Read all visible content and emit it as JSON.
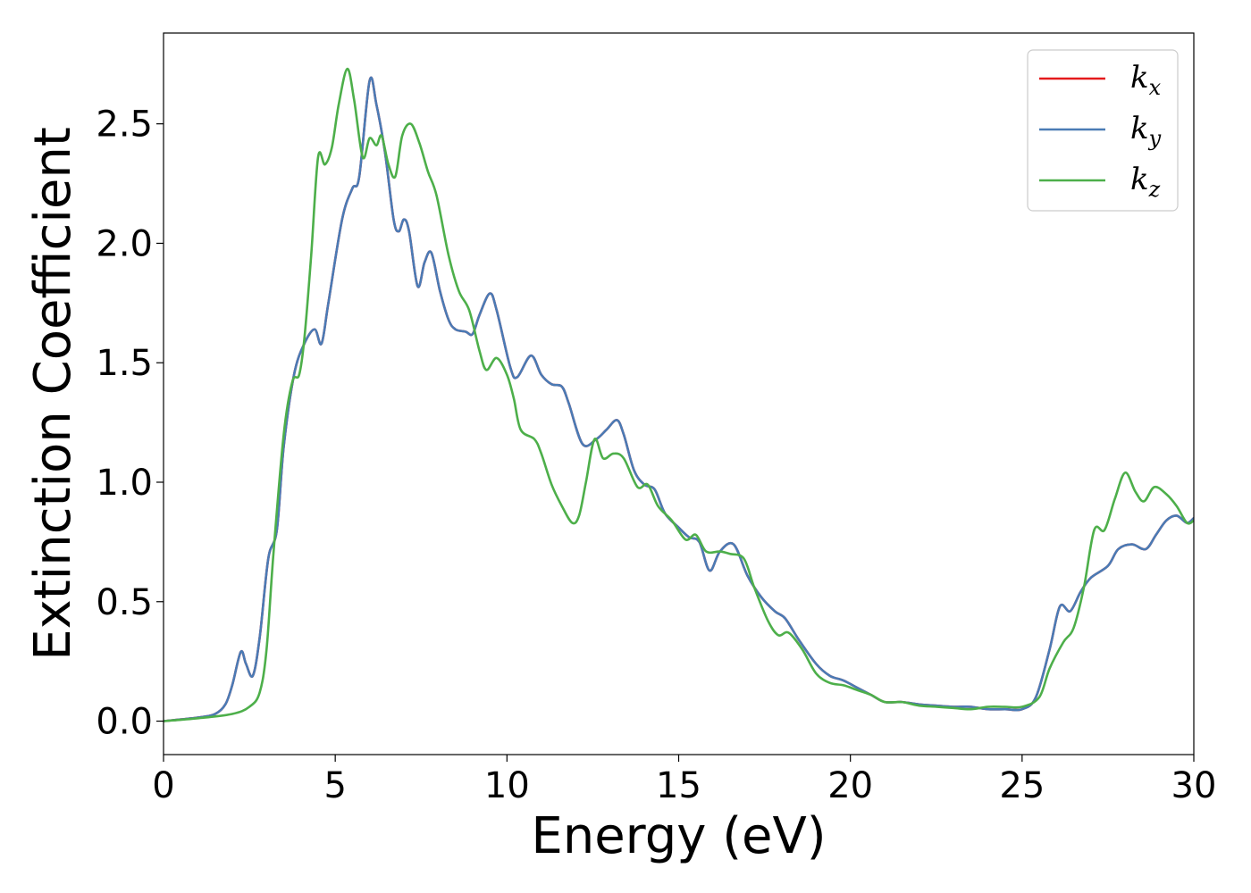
{
  "chart_data": {
    "type": "line",
    "xlabel": "Energy (eV)",
    "ylabel": "Extinction Coefficient",
    "xlim": [
      0,
      30
    ],
    "ylim": [
      -0.14,
      2.88
    ],
    "xticks": [
      0,
      5,
      10,
      15,
      20,
      25,
      30
    ],
    "yticks": [
      0.0,
      0.5,
      1.0,
      1.5,
      2.0,
      2.5
    ],
    "xtick_labels": [
      "0",
      "5",
      "10",
      "15",
      "20",
      "25",
      "30"
    ],
    "ytick_labels": [
      "0.0",
      "0.5",
      "1.0",
      "1.5",
      "2.0",
      "2.5"
    ],
    "grid": false,
    "legend_position": "top-right",
    "series": [
      {
        "name": "k_x",
        "label_base": "k",
        "label_sub": "x",
        "color": "#e41a1c",
        "points": [
          [
            0,
            0.0
          ],
          [
            1.0,
            0.015
          ],
          [
            1.5,
            0.03
          ],
          [
            1.8,
            0.07
          ],
          [
            2.0,
            0.15
          ],
          [
            2.25,
            0.29
          ],
          [
            2.4,
            0.24
          ],
          [
            2.6,
            0.19
          ],
          [
            2.8,
            0.35
          ],
          [
            3.05,
            0.68
          ],
          [
            3.3,
            0.8
          ],
          [
            3.5,
            1.15
          ],
          [
            3.8,
            1.45
          ],
          [
            4.1,
            1.58
          ],
          [
            4.4,
            1.64
          ],
          [
            4.6,
            1.58
          ],
          [
            4.8,
            1.75
          ],
          [
            5.2,
            2.1
          ],
          [
            5.5,
            2.23
          ],
          [
            5.7,
            2.28
          ],
          [
            6.0,
            2.68
          ],
          [
            6.2,
            2.58
          ],
          [
            6.45,
            2.38
          ],
          [
            6.7,
            2.1
          ],
          [
            6.85,
            2.05
          ],
          [
            7.0,
            2.1
          ],
          [
            7.15,
            2.05
          ],
          [
            7.4,
            1.82
          ],
          [
            7.6,
            1.92
          ],
          [
            7.8,
            1.96
          ],
          [
            8.05,
            1.8
          ],
          [
            8.3,
            1.68
          ],
          [
            8.5,
            1.64
          ],
          [
            8.8,
            1.63
          ],
          [
            9.0,
            1.62
          ],
          [
            9.2,
            1.7
          ],
          [
            9.5,
            1.79
          ],
          [
            9.7,
            1.72
          ],
          [
            10.1,
            1.48
          ],
          [
            10.3,
            1.44
          ],
          [
            10.7,
            1.53
          ],
          [
            11.0,
            1.45
          ],
          [
            11.3,
            1.41
          ],
          [
            11.6,
            1.4
          ],
          [
            11.8,
            1.33
          ],
          [
            12.2,
            1.16
          ],
          [
            12.6,
            1.18
          ],
          [
            12.9,
            1.22
          ],
          [
            13.2,
            1.26
          ],
          [
            13.4,
            1.2
          ],
          [
            13.7,
            1.05
          ],
          [
            14.0,
            0.99
          ],
          [
            14.3,
            0.97
          ],
          [
            14.6,
            0.87
          ],
          [
            15.0,
            0.81
          ],
          [
            15.3,
            0.77
          ],
          [
            15.6,
            0.75
          ],
          [
            15.9,
            0.63
          ],
          [
            16.2,
            0.71
          ],
          [
            16.6,
            0.74
          ],
          [
            17.0,
            0.61
          ],
          [
            17.4,
            0.52
          ],
          [
            17.8,
            0.46
          ],
          [
            18.1,
            0.43
          ],
          [
            18.5,
            0.34
          ],
          [
            19.0,
            0.24
          ],
          [
            19.4,
            0.19
          ],
          [
            19.8,
            0.17
          ],
          [
            20.2,
            0.14
          ],
          [
            20.6,
            0.11
          ],
          [
            21.0,
            0.08
          ],
          [
            21.5,
            0.08
          ],
          [
            22.0,
            0.07
          ],
          [
            22.5,
            0.065
          ],
          [
            23.0,
            0.06
          ],
          [
            23.5,
            0.06
          ],
          [
            24.0,
            0.05
          ],
          [
            24.5,
            0.05
          ],
          [
            25.0,
            0.05
          ],
          [
            25.4,
            0.1
          ],
          [
            25.8,
            0.3
          ],
          [
            26.1,
            0.48
          ],
          [
            26.4,
            0.46
          ],
          [
            26.7,
            0.54
          ],
          [
            27.0,
            0.6
          ],
          [
            27.5,
            0.65
          ],
          [
            27.8,
            0.72
          ],
          [
            28.2,
            0.74
          ],
          [
            28.6,
            0.72
          ],
          [
            28.9,
            0.78
          ],
          [
            29.2,
            0.84
          ],
          [
            29.5,
            0.86
          ],
          [
            29.8,
            0.83
          ],
          [
            30.0,
            0.85
          ]
        ]
      },
      {
        "name": "k_y",
        "label_base": "k",
        "label_sub": "y",
        "color": "#4a7bb5",
        "points": [
          [
            0,
            0.0
          ],
          [
            1.0,
            0.015
          ],
          [
            1.5,
            0.03
          ],
          [
            1.8,
            0.07
          ],
          [
            2.0,
            0.15
          ],
          [
            2.25,
            0.29
          ],
          [
            2.4,
            0.24
          ],
          [
            2.6,
            0.19
          ],
          [
            2.8,
            0.35
          ],
          [
            3.05,
            0.68
          ],
          [
            3.3,
            0.8
          ],
          [
            3.5,
            1.15
          ],
          [
            3.8,
            1.45
          ],
          [
            4.1,
            1.58
          ],
          [
            4.4,
            1.64
          ],
          [
            4.6,
            1.58
          ],
          [
            4.8,
            1.75
          ],
          [
            5.2,
            2.1
          ],
          [
            5.5,
            2.23
          ],
          [
            5.7,
            2.28
          ],
          [
            6.0,
            2.68
          ],
          [
            6.2,
            2.58
          ],
          [
            6.45,
            2.38
          ],
          [
            6.7,
            2.1
          ],
          [
            6.85,
            2.05
          ],
          [
            7.0,
            2.1
          ],
          [
            7.15,
            2.05
          ],
          [
            7.4,
            1.82
          ],
          [
            7.6,
            1.92
          ],
          [
            7.8,
            1.96
          ],
          [
            8.05,
            1.8
          ],
          [
            8.3,
            1.68
          ],
          [
            8.5,
            1.64
          ],
          [
            8.8,
            1.63
          ],
          [
            9.0,
            1.62
          ],
          [
            9.2,
            1.7
          ],
          [
            9.5,
            1.79
          ],
          [
            9.7,
            1.72
          ],
          [
            10.1,
            1.48
          ],
          [
            10.3,
            1.44
          ],
          [
            10.7,
            1.53
          ],
          [
            11.0,
            1.45
          ],
          [
            11.3,
            1.41
          ],
          [
            11.6,
            1.4
          ],
          [
            11.8,
            1.33
          ],
          [
            12.2,
            1.16
          ],
          [
            12.6,
            1.18
          ],
          [
            12.9,
            1.22
          ],
          [
            13.2,
            1.26
          ],
          [
            13.4,
            1.2
          ],
          [
            13.7,
            1.05
          ],
          [
            14.0,
            0.99
          ],
          [
            14.3,
            0.97
          ],
          [
            14.6,
            0.87
          ],
          [
            15.0,
            0.81
          ],
          [
            15.3,
            0.77
          ],
          [
            15.6,
            0.75
          ],
          [
            15.9,
            0.63
          ],
          [
            16.2,
            0.71
          ],
          [
            16.6,
            0.74
          ],
          [
            17.0,
            0.61
          ],
          [
            17.4,
            0.52
          ],
          [
            17.8,
            0.46
          ],
          [
            18.1,
            0.43
          ],
          [
            18.5,
            0.34
          ],
          [
            19.0,
            0.24
          ],
          [
            19.4,
            0.19
          ],
          [
            19.8,
            0.17
          ],
          [
            20.2,
            0.14
          ],
          [
            20.6,
            0.11
          ],
          [
            21.0,
            0.08
          ],
          [
            21.5,
            0.08
          ],
          [
            22.0,
            0.07
          ],
          [
            22.5,
            0.065
          ],
          [
            23.0,
            0.06
          ],
          [
            23.5,
            0.06
          ],
          [
            24.0,
            0.05
          ],
          [
            24.5,
            0.05
          ],
          [
            25.0,
            0.05
          ],
          [
            25.4,
            0.1
          ],
          [
            25.8,
            0.3
          ],
          [
            26.1,
            0.48
          ],
          [
            26.4,
            0.46
          ],
          [
            26.7,
            0.54
          ],
          [
            27.0,
            0.6
          ],
          [
            27.5,
            0.65
          ],
          [
            27.8,
            0.72
          ],
          [
            28.2,
            0.74
          ],
          [
            28.6,
            0.72
          ],
          [
            28.9,
            0.78
          ],
          [
            29.2,
            0.84
          ],
          [
            29.5,
            0.86
          ],
          [
            29.8,
            0.83
          ],
          [
            30.0,
            0.85
          ]
        ]
      },
      {
        "name": "k_z",
        "label_base": "k",
        "label_sub": "z",
        "color": "#4daf4a",
        "points": [
          [
            0,
            0.0
          ],
          [
            1.0,
            0.012
          ],
          [
            2.0,
            0.03
          ],
          [
            2.5,
            0.06
          ],
          [
            2.8,
            0.12
          ],
          [
            3.0,
            0.3
          ],
          [
            3.2,
            0.7
          ],
          [
            3.5,
            1.2
          ],
          [
            3.75,
            1.42
          ],
          [
            3.95,
            1.45
          ],
          [
            4.1,
            1.6
          ],
          [
            4.3,
            1.95
          ],
          [
            4.5,
            2.36
          ],
          [
            4.7,
            2.33
          ],
          [
            4.9,
            2.4
          ],
          [
            5.1,
            2.58
          ],
          [
            5.35,
            2.73
          ],
          [
            5.55,
            2.6
          ],
          [
            5.8,
            2.36
          ],
          [
            6.0,
            2.44
          ],
          [
            6.2,
            2.41
          ],
          [
            6.35,
            2.45
          ],
          [
            6.55,
            2.33
          ],
          [
            6.75,
            2.28
          ],
          [
            6.95,
            2.45
          ],
          [
            7.2,
            2.5
          ],
          [
            7.45,
            2.42
          ],
          [
            7.7,
            2.3
          ],
          [
            7.95,
            2.2
          ],
          [
            8.3,
            1.95
          ],
          [
            8.6,
            1.8
          ],
          [
            8.9,
            1.72
          ],
          [
            9.2,
            1.55
          ],
          [
            9.4,
            1.47
          ],
          [
            9.7,
            1.52
          ],
          [
            10.0,
            1.45
          ],
          [
            10.2,
            1.35
          ],
          [
            10.4,
            1.22
          ],
          [
            10.8,
            1.18
          ],
          [
            11.0,
            1.12
          ],
          [
            11.3,
            0.99
          ],
          [
            11.6,
            0.9
          ],
          [
            11.9,
            0.83
          ],
          [
            12.1,
            0.86
          ],
          [
            12.3,
            1.0
          ],
          [
            12.55,
            1.18
          ],
          [
            12.8,
            1.1
          ],
          [
            13.1,
            1.12
          ],
          [
            13.4,
            1.1
          ],
          [
            13.8,
            0.98
          ],
          [
            14.1,
            0.99
          ],
          [
            14.4,
            0.9
          ],
          [
            14.8,
            0.84
          ],
          [
            15.2,
            0.76
          ],
          [
            15.5,
            0.78
          ],
          [
            15.8,
            0.71
          ],
          [
            16.2,
            0.71
          ],
          [
            16.5,
            0.7
          ],
          [
            16.9,
            0.68
          ],
          [
            17.2,
            0.56
          ],
          [
            17.6,
            0.42
          ],
          [
            17.9,
            0.36
          ],
          [
            18.2,
            0.37
          ],
          [
            18.6,
            0.3
          ],
          [
            19.0,
            0.2
          ],
          [
            19.4,
            0.16
          ],
          [
            19.8,
            0.15
          ],
          [
            20.2,
            0.13
          ],
          [
            20.6,
            0.11
          ],
          [
            21.0,
            0.08
          ],
          [
            21.5,
            0.08
          ],
          [
            22.0,
            0.065
          ],
          [
            22.5,
            0.06
          ],
          [
            23.0,
            0.055
          ],
          [
            23.5,
            0.05
          ],
          [
            24.0,
            0.06
          ],
          [
            24.5,
            0.06
          ],
          [
            25.0,
            0.06
          ],
          [
            25.5,
            0.1
          ],
          [
            25.8,
            0.22
          ],
          [
            26.2,
            0.33
          ],
          [
            26.5,
            0.39
          ],
          [
            26.8,
            0.56
          ],
          [
            27.1,
            0.8
          ],
          [
            27.4,
            0.8
          ],
          [
            27.7,
            0.93
          ],
          [
            28.0,
            1.04
          ],
          [
            28.3,
            0.96
          ],
          [
            28.55,
            0.92
          ],
          [
            28.85,
            0.98
          ],
          [
            29.2,
            0.95
          ],
          [
            29.5,
            0.9
          ],
          [
            29.8,
            0.83
          ],
          [
            30.0,
            0.84
          ]
        ]
      }
    ]
  }
}
